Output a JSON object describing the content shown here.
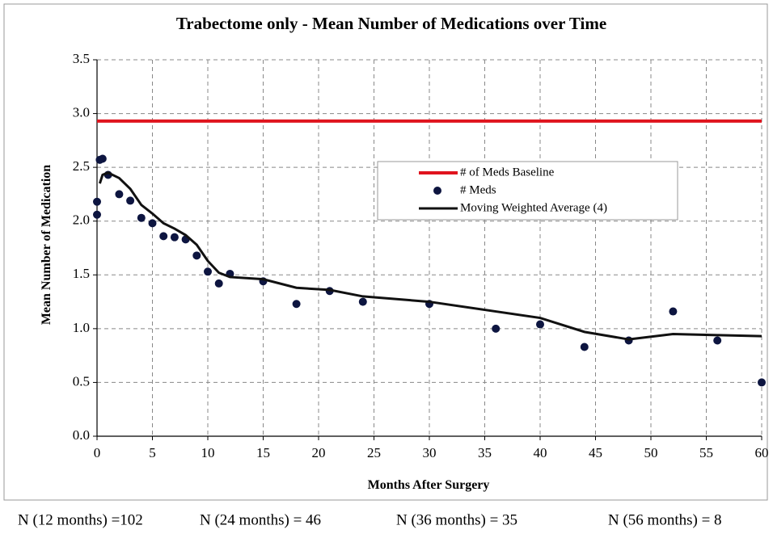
{
  "chart_data": {
    "type": "scatter-line",
    "title": "Trabectome only - Mean Number of Medications over Time",
    "x_label": "Months After Surgery",
    "y_label": "Mean Number of Medication",
    "xlim": [
      0,
      60
    ],
    "ylim": [
      0,
      3.5
    ],
    "xticks": [
      0,
      5,
      10,
      15,
      20,
      25,
      30,
      35,
      40,
      45,
      50,
      55,
      60
    ],
    "yticks": [
      {
        "value": 0,
        "label": "0.0"
      },
      0.5,
      {
        "value": 1,
        "label": "1.0"
      },
      1.5,
      {
        "value": 2,
        "label": "2.0"
      },
      2.5,
      {
        "value": 3,
        "label": "3.0"
      },
      3.5
    ],
    "grid": true,
    "series": [
      {
        "name": "# of Meds Baseline",
        "kind": "line",
        "color": "#e0141e",
        "x": [
          0,
          60
        ],
        "values": [
          2.93,
          2.93
        ]
      },
      {
        "name": "# Meds",
        "kind": "scatter",
        "color": "#0d1540",
        "x": [
          0,
          0,
          0.25,
          0.5,
          1,
          2,
          3,
          4,
          5,
          6,
          7,
          8,
          9,
          10,
          11,
          12,
          15,
          18,
          21,
          24,
          30,
          36,
          40,
          44,
          48,
          52,
          56,
          60
        ],
        "values": [
          2.06,
          2.18,
          2.57,
          2.58,
          2.43,
          2.25,
          2.19,
          2.03,
          1.98,
          1.86,
          1.85,
          1.83,
          1.68,
          1.53,
          1.42,
          1.51,
          1.44,
          1.23,
          1.35,
          1.25,
          1.23,
          1.0,
          1.04,
          0.83,
          0.89,
          1.16,
          0.89,
          0.5
        ]
      },
      {
        "name": "Moving Weighted Average (4)",
        "kind": "line",
        "color": "#111111",
        "x": [
          0.25,
          0.5,
          1,
          2,
          3,
          4,
          5,
          6,
          7,
          8,
          9,
          10,
          11,
          12,
          15,
          18,
          21,
          24,
          30,
          36,
          40,
          44,
          48,
          52,
          56,
          60
        ],
        "values": [
          2.35,
          2.43,
          2.45,
          2.4,
          2.3,
          2.15,
          2.07,
          1.98,
          1.93,
          1.87,
          1.78,
          1.63,
          1.52,
          1.48,
          1.46,
          1.38,
          1.36,
          1.3,
          1.25,
          1.16,
          1.1,
          0.97,
          0.9,
          0.95,
          0.94,
          0.93
        ]
      }
    ],
    "footnotes": [
      "N (12 months) =102",
      "N (24 months) = 46",
      "N (36 months) = 35",
      "N (56 months) = 8"
    ]
  }
}
